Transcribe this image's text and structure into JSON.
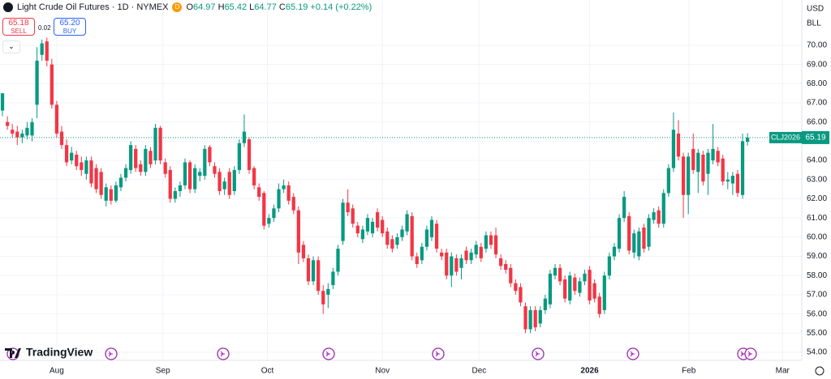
{
  "header": {
    "symbol": "Light Crude Oil Futures · 1D · NYMEX",
    "flag": "D",
    "ohlc": [
      {
        "key": "O",
        "value": "64.97"
      },
      {
        "key": "H",
        "value": "65.42"
      },
      {
        "key": "L",
        "value": "64.77"
      },
      {
        "key": "C",
        "value": "65.19"
      }
    ],
    "change": "+0.14 (+0.22%)"
  },
  "trade": {
    "sell_price": "65.18",
    "sell": "SELL",
    "spread": "0.02",
    "buy_price": "65.20",
    "buy": "BUY"
  },
  "axis_units": {
    "currency": "USD",
    "unit": "BLL"
  },
  "price_tag": {
    "symbol": "CLJ2026",
    "price": "65.19"
  },
  "logo": "TradingView",
  "chart_data": {
    "type": "candlestick",
    "up_color": "#089981",
    "down_color": "#f23645",
    "grid": true,
    "xlim": [
      -0.5,
      162
    ],
    "ylim": [
      53.58,
      72.36
    ],
    "xticks": [
      {
        "value": 11.0,
        "label": "Aug"
      },
      {
        "value": 32.5,
        "label": "Sep"
      },
      {
        "value": 53.7,
        "label": "Oct"
      },
      {
        "value": 77.0,
        "label": "Nov"
      },
      {
        "value": 96.6,
        "label": "Dec"
      },
      {
        "value": 119.0,
        "label": "2026"
      },
      {
        "value": 139.1,
        "label": "Feb"
      },
      {
        "value": 158.1,
        "label": "Mar"
      }
    ],
    "yticks": [
      {
        "value": 54,
        "label": "54.00"
      },
      {
        "value": 55,
        "label": "55.00"
      },
      {
        "value": 56,
        "label": "56.00"
      },
      {
        "value": 57,
        "label": "57.00"
      },
      {
        "value": 58,
        "label": "58.00"
      },
      {
        "value": 59,
        "label": "59.00"
      },
      {
        "value": 60,
        "label": "60.00"
      },
      {
        "value": 61,
        "label": "61.00"
      },
      {
        "value": 62,
        "label": "62.00"
      },
      {
        "value": 63,
        "label": "63.00"
      },
      {
        "value": 64,
        "label": "64.00"
      },
      {
        "value": 65,
        "label": "65.00"
      },
      {
        "value": 66,
        "label": "66.00"
      },
      {
        "value": 67,
        "label": "67.00"
      },
      {
        "value": 68,
        "label": "68.00"
      },
      {
        "value": 69,
        "label": "69.00"
      },
      {
        "value": 70,
        "label": "70.00"
      }
    ],
    "candles": [
      {
        "o": 66.6,
        "h": 67.5,
        "l": 66.3,
        "c": 67.5
      },
      {
        "o": 66.0,
        "h": 66.3,
        "l": 65.6,
        "c": 65.8
      },
      {
        "o": 65.6,
        "h": 65.9,
        "l": 65.2,
        "c": 65.4
      },
      {
        "o": 65.5,
        "h": 65.8,
        "l": 64.8,
        "c": 65.2
      },
      {
        "o": 65.2,
        "h": 65.6,
        "l": 64.9,
        "c": 65.4
      },
      {
        "o": 65.3,
        "h": 66.0,
        "l": 65.1,
        "c": 65.7
      },
      {
        "o": 65.3,
        "h": 66.2,
        "l": 65.0,
        "c": 66.0
      },
      {
        "o": 66.9,
        "h": 69.9,
        "l": 66.2,
        "c": 69.2
      },
      {
        "o": 69.5,
        "h": 70.3,
        "l": 69.2,
        "c": 70.1
      },
      {
        "o": 70.2,
        "h": 70.4,
        "l": 68.9,
        "c": 69.2
      },
      {
        "o": 69.0,
        "h": 69.3,
        "l": 66.7,
        "c": 66.9
      },
      {
        "o": 66.9,
        "h": 67.1,
        "l": 65.2,
        "c": 65.4
      },
      {
        "o": 65.5,
        "h": 65.8,
        "l": 64.6,
        "c": 64.8
      },
      {
        "o": 64.8,
        "h": 65.1,
        "l": 63.7,
        "c": 63.9
      },
      {
        "o": 64.0,
        "h": 64.7,
        "l": 63.8,
        "c": 64.4
      },
      {
        "o": 64.3,
        "h": 64.5,
        "l": 63.5,
        "c": 63.7
      },
      {
        "o": 63.9,
        "h": 64.2,
        "l": 63.2,
        "c": 63.5
      },
      {
        "o": 63.3,
        "h": 64.2,
        "l": 63.0,
        "c": 64.0
      },
      {
        "o": 64.0,
        "h": 64.2,
        "l": 62.6,
        "c": 62.8
      },
      {
        "o": 63.6,
        "h": 63.8,
        "l": 62.3,
        "c": 62.5
      },
      {
        "o": 63.4,
        "h": 63.6,
        "l": 62.0,
        "c": 62.2
      },
      {
        "o": 61.9,
        "h": 62.8,
        "l": 61.6,
        "c": 62.6
      },
      {
        "o": 62.5,
        "h": 62.7,
        "l": 61.7,
        "c": 61.9
      },
      {
        "o": 61.9,
        "h": 62.9,
        "l": 61.8,
        "c": 62.7
      },
      {
        "o": 62.6,
        "h": 63.3,
        "l": 62.4,
        "c": 63.1
      },
      {
        "o": 63.1,
        "h": 63.8,
        "l": 62.9,
        "c": 63.6
      },
      {
        "o": 63.5,
        "h": 65.0,
        "l": 63.3,
        "c": 64.8
      },
      {
        "o": 64.6,
        "h": 64.8,
        "l": 63.4,
        "c": 63.6
      },
      {
        "o": 63.8,
        "h": 64.0,
        "l": 63.2,
        "c": 63.4
      },
      {
        "o": 63.4,
        "h": 64.8,
        "l": 63.2,
        "c": 64.6
      },
      {
        "o": 64.5,
        "h": 64.7,
        "l": 63.6,
        "c": 63.8
      },
      {
        "o": 64.0,
        "h": 65.9,
        "l": 63.8,
        "c": 65.7
      },
      {
        "o": 65.7,
        "h": 65.8,
        "l": 63.8,
        "c": 64.0
      },
      {
        "o": 63.9,
        "h": 64.1,
        "l": 63.1,
        "c": 63.3
      },
      {
        "o": 63.5,
        "h": 63.7,
        "l": 61.8,
        "c": 62.0
      },
      {
        "o": 62.0,
        "h": 62.6,
        "l": 61.8,
        "c": 62.4
      },
      {
        "o": 62.4,
        "h": 62.9,
        "l": 62.1,
        "c": 62.7
      },
      {
        "o": 62.7,
        "h": 64.1,
        "l": 62.5,
        "c": 63.9
      },
      {
        "o": 63.9,
        "h": 64.0,
        "l": 62.3,
        "c": 62.5
      },
      {
        "o": 62.5,
        "h": 63.8,
        "l": 62.3,
        "c": 63.6
      },
      {
        "o": 63.2,
        "h": 63.6,
        "l": 62.9,
        "c": 63.4
      },
      {
        "o": 63.2,
        "h": 64.8,
        "l": 63.0,
        "c": 64.6
      },
      {
        "o": 64.7,
        "h": 64.8,
        "l": 63.7,
        "c": 63.9
      },
      {
        "o": 63.7,
        "h": 63.9,
        "l": 63.1,
        "c": 63.3
      },
      {
        "o": 63.4,
        "h": 63.6,
        "l": 62.2,
        "c": 62.4
      },
      {
        "o": 62.5,
        "h": 63.1,
        "l": 62.2,
        "c": 62.9
      },
      {
        "o": 63.4,
        "h": 63.6,
        "l": 62.0,
        "c": 62.2
      },
      {
        "o": 62.4,
        "h": 63.7,
        "l": 62.2,
        "c": 63.5
      },
      {
        "o": 63.5,
        "h": 65.1,
        "l": 63.3,
        "c": 64.9
      },
      {
        "o": 64.9,
        "h": 66.4,
        "l": 64.7,
        "c": 65.5
      },
      {
        "o": 65.1,
        "h": 65.2,
        "l": 63.3,
        "c": 63.5
      },
      {
        "o": 63.6,
        "h": 63.7,
        "l": 62.5,
        "c": 62.7
      },
      {
        "o": 62.6,
        "h": 62.8,
        "l": 61.9,
        "c": 62.1
      },
      {
        "o": 62.3,
        "h": 62.4,
        "l": 60.4,
        "c": 60.6
      },
      {
        "o": 60.7,
        "h": 61.2,
        "l": 60.5,
        "c": 61.0
      },
      {
        "o": 61.0,
        "h": 61.7,
        "l": 60.8,
        "c": 61.5
      },
      {
        "o": 61.5,
        "h": 62.8,
        "l": 61.3,
        "c": 62.5
      },
      {
        "o": 62.5,
        "h": 63.0,
        "l": 62.3,
        "c": 62.7
      },
      {
        "o": 62.7,
        "h": 62.9,
        "l": 61.7,
        "c": 61.9
      },
      {
        "o": 62.1,
        "h": 62.3,
        "l": 61.2,
        "c": 61.4
      },
      {
        "o": 61.4,
        "h": 61.6,
        "l": 58.6,
        "c": 59.2
      },
      {
        "o": 59.6,
        "h": 59.8,
        "l": 58.7,
        "c": 58.9
      },
      {
        "o": 58.9,
        "h": 59.1,
        "l": 57.5,
        "c": 57.7
      },
      {
        "o": 57.7,
        "h": 59.0,
        "l": 57.5,
        "c": 58.8
      },
      {
        "o": 58.8,
        "h": 59.0,
        "l": 57.0,
        "c": 57.2
      },
      {
        "o": 57.2,
        "h": 57.5,
        "l": 56.0,
        "c": 56.5
      },
      {
        "o": 57.0,
        "h": 57.6,
        "l": 56.3,
        "c": 57.3
      },
      {
        "o": 57.5,
        "h": 58.4,
        "l": 57.3,
        "c": 58.2
      },
      {
        "o": 58.2,
        "h": 59.6,
        "l": 58.0,
        "c": 59.4
      },
      {
        "o": 59.8,
        "h": 62.0,
        "l": 59.6,
        "c": 61.8
      },
      {
        "o": 61.8,
        "h": 62.5,
        "l": 61.1,
        "c": 61.3
      },
      {
        "o": 61.5,
        "h": 61.7,
        "l": 60.5,
        "c": 60.7
      },
      {
        "o": 60.6,
        "h": 60.8,
        "l": 60.0,
        "c": 60.2
      },
      {
        "o": 59.9,
        "h": 60.6,
        "l": 59.7,
        "c": 60.4
      },
      {
        "o": 60.3,
        "h": 61.2,
        "l": 60.1,
        "c": 61.0
      },
      {
        "o": 60.2,
        "h": 61.0,
        "l": 60.0,
        "c": 60.8
      },
      {
        "o": 61.3,
        "h": 61.5,
        "l": 60.3,
        "c": 60.5
      },
      {
        "o": 60.9,
        "h": 61.1,
        "l": 60.0,
        "c": 60.2
      },
      {
        "o": 60.3,
        "h": 60.5,
        "l": 59.4,
        "c": 59.6
      },
      {
        "o": 59.9,
        "h": 60.1,
        "l": 59.2,
        "c": 59.4
      },
      {
        "o": 59.6,
        "h": 60.2,
        "l": 59.4,
        "c": 60.0
      },
      {
        "o": 60.0,
        "h": 60.6,
        "l": 59.8,
        "c": 60.4
      },
      {
        "o": 60.3,
        "h": 61.4,
        "l": 60.1,
        "c": 61.2
      },
      {
        "o": 61.1,
        "h": 61.3,
        "l": 58.8,
        "c": 59.0
      },
      {
        "o": 59.0,
        "h": 59.2,
        "l": 58.4,
        "c": 58.6
      },
      {
        "o": 58.8,
        "h": 59.7,
        "l": 58.6,
        "c": 59.5
      },
      {
        "o": 59.5,
        "h": 60.6,
        "l": 59.3,
        "c": 60.4
      },
      {
        "o": 60.0,
        "h": 61.1,
        "l": 59.8,
        "c": 60.9
      },
      {
        "o": 60.7,
        "h": 60.9,
        "l": 59.2,
        "c": 59.4
      },
      {
        "o": 59.2,
        "h": 59.4,
        "l": 58.8,
        "c": 59.0
      },
      {
        "o": 59.2,
        "h": 59.4,
        "l": 57.8,
        "c": 58.0
      },
      {
        "o": 58.0,
        "h": 59.2,
        "l": 57.4,
        "c": 59.0
      },
      {
        "o": 58.9,
        "h": 59.1,
        "l": 58.0,
        "c": 58.2
      },
      {
        "o": 58.4,
        "h": 59.1,
        "l": 57.8,
        "c": 58.9
      },
      {
        "o": 59.3,
        "h": 59.5,
        "l": 58.6,
        "c": 58.8
      },
      {
        "o": 58.8,
        "h": 59.4,
        "l": 58.6,
        "c": 59.2
      },
      {
        "o": 59.1,
        "h": 59.8,
        "l": 58.9,
        "c": 59.6
      },
      {
        "o": 59.5,
        "h": 59.7,
        "l": 58.7,
        "c": 58.9
      },
      {
        "o": 59.4,
        "h": 60.3,
        "l": 59.2,
        "c": 60.1
      },
      {
        "o": 60.1,
        "h": 60.3,
        "l": 59.4,
        "c": 59.6
      },
      {
        "o": 60.1,
        "h": 60.5,
        "l": 58.9,
        "c": 59.1
      },
      {
        "o": 58.9,
        "h": 59.1,
        "l": 58.3,
        "c": 58.5
      },
      {
        "o": 58.6,
        "h": 58.8,
        "l": 58.1,
        "c": 58.3
      },
      {
        "o": 58.4,
        "h": 58.6,
        "l": 57.4,
        "c": 57.6
      },
      {
        "o": 57.6,
        "h": 57.8,
        "l": 57.0,
        "c": 57.2
      },
      {
        "o": 57.4,
        "h": 57.6,
        "l": 56.4,
        "c": 56.6
      },
      {
        "o": 56.4,
        "h": 56.6,
        "l": 55.0,
        "c": 55.2
      },
      {
        "o": 55.2,
        "h": 56.4,
        "l": 55.0,
        "c": 56.2
      },
      {
        "o": 56.2,
        "h": 56.4,
        "l": 55.1,
        "c": 55.3
      },
      {
        "o": 55.5,
        "h": 56.4,
        "l": 55.3,
        "c": 56.2
      },
      {
        "o": 56.2,
        "h": 57.0,
        "l": 56.0,
        "c": 56.8
      },
      {
        "o": 56.5,
        "h": 58.3,
        "l": 56.3,
        "c": 58.1
      },
      {
        "o": 58.0,
        "h": 58.6,
        "l": 57.8,
        "c": 58.4
      },
      {
        "o": 58.4,
        "h": 58.6,
        "l": 57.5,
        "c": 57.7
      },
      {
        "o": 57.8,
        "h": 58.0,
        "l": 56.6,
        "c": 56.8
      },
      {
        "o": 56.7,
        "h": 58.2,
        "l": 56.5,
        "c": 58.0
      },
      {
        "o": 57.9,
        "h": 58.1,
        "l": 57.0,
        "c": 57.2
      },
      {
        "o": 57.1,
        "h": 57.9,
        "l": 56.9,
        "c": 57.7
      },
      {
        "o": 57.7,
        "h": 58.3,
        "l": 57.5,
        "c": 58.1
      },
      {
        "o": 58.3,
        "h": 58.5,
        "l": 56.5,
        "c": 56.7
      },
      {
        "o": 57.6,
        "h": 57.8,
        "l": 56.6,
        "c": 56.8
      },
      {
        "o": 56.9,
        "h": 57.1,
        "l": 55.8,
        "c": 56.0
      },
      {
        "o": 56.2,
        "h": 58.2,
        "l": 56.0,
        "c": 58.0
      },
      {
        "o": 58.0,
        "h": 59.2,
        "l": 57.8,
        "c": 59.0
      },
      {
        "o": 59.0,
        "h": 59.7,
        "l": 58.8,
        "c": 59.5
      },
      {
        "o": 59.4,
        "h": 61.2,
        "l": 59.2,
        "c": 61.0
      },
      {
        "o": 61.0,
        "h": 62.4,
        "l": 60.8,
        "c": 62.1
      },
      {
        "o": 61.1,
        "h": 61.3,
        "l": 59.1,
        "c": 59.3
      },
      {
        "o": 59.2,
        "h": 60.4,
        "l": 58.9,
        "c": 60.2
      },
      {
        "o": 59.0,
        "h": 60.5,
        "l": 58.8,
        "c": 60.3
      },
      {
        "o": 60.5,
        "h": 60.7,
        "l": 59.2,
        "c": 59.4
      },
      {
        "o": 59.5,
        "h": 61.2,
        "l": 59.3,
        "c": 61.0
      },
      {
        "o": 60.9,
        "h": 61.5,
        "l": 60.7,
        "c": 61.3
      },
      {
        "o": 61.4,
        "h": 61.6,
        "l": 60.5,
        "c": 60.7
      },
      {
        "o": 60.7,
        "h": 62.5,
        "l": 60.5,
        "c": 62.3
      },
      {
        "o": 62.3,
        "h": 63.8,
        "l": 62.1,
        "c": 63.6
      },
      {
        "o": 63.6,
        "h": 66.5,
        "l": 63.4,
        "c": 65.6
      },
      {
        "o": 65.4,
        "h": 66.1,
        "l": 64.0,
        "c": 64.2
      },
      {
        "o": 64.2,
        "h": 64.4,
        "l": 61.0,
        "c": 62.2
      },
      {
        "o": 62.2,
        "h": 64.4,
        "l": 61.2,
        "c": 64.2
      },
      {
        "o": 64.6,
        "h": 65.4,
        "l": 63.3,
        "c": 63.5
      },
      {
        "o": 63.4,
        "h": 64.6,
        "l": 62.3,
        "c": 64.4
      },
      {
        "o": 64.3,
        "h": 64.5,
        "l": 62.7,
        "c": 62.9
      },
      {
        "o": 63.3,
        "h": 64.6,
        "l": 62.2,
        "c": 64.4
      },
      {
        "o": 64.0,
        "h": 65.9,
        "l": 63.8,
        "c": 64.6
      },
      {
        "o": 64.5,
        "h": 64.7,
        "l": 63.7,
        "c": 63.9
      },
      {
        "o": 64.1,
        "h": 64.3,
        "l": 62.7,
        "c": 62.9
      },
      {
        "o": 62.9,
        "h": 63.4,
        "l": 62.5,
        "c": 63.0
      },
      {
        "o": 62.8,
        "h": 63.4,
        "l": 62.2,
        "c": 63.2
      },
      {
        "o": 63.3,
        "h": 63.5,
        "l": 62.1,
        "c": 62.3
      },
      {
        "o": 62.2,
        "h": 65.4,
        "l": 62.0,
        "c": 65.0
      },
      {
        "o": 64.97,
        "h": 65.42,
        "l": 64.77,
        "c": 65.19
      }
    ]
  }
}
